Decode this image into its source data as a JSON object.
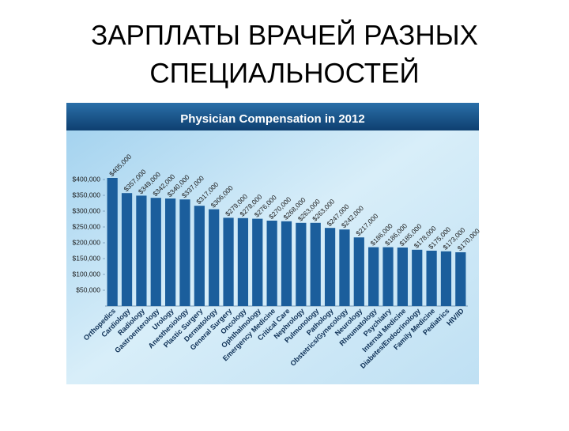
{
  "slide_title": [
    "ЗАРПЛАТЫ ВРАЧЕЙ РАЗНЫХ",
    "СПЕЦИАЛЬНОСТЕЙ"
  ],
  "chart_data": {
    "type": "bar",
    "title": "Physician Compensation in 2012",
    "categories": [
      "Orthopedics",
      "Cardiology",
      "Radiology",
      "Gastroenterology",
      "Urology",
      "Anesthesiology",
      "Plastic Surgery",
      "Dermatology",
      "General Surgery",
      "Oncology",
      "Ophthalmology",
      "Emergency Medicine",
      "Critical Care",
      "Nephrology",
      "Pulmonology",
      "Pathology",
      "Obstetrics/Gynecology",
      "Neurology",
      "Rheumatology",
      "Psychiatry",
      "Internal Medicine",
      "Diabetes/Endocrinology",
      "Family Medicine",
      "Pediatrics",
      "HIV/ID"
    ],
    "values": [
      405000,
      357000,
      349000,
      342000,
      340000,
      337000,
      317000,
      306000,
      279000,
      278000,
      276000,
      270000,
      268000,
      263000,
      263000,
      247000,
      242000,
      217000,
      186000,
      186000,
      185000,
      178000,
      175000,
      173000,
      170000
    ],
    "value_labels": [
      "$405,000",
      "$357,000",
      "$349,000",
      "$342,000",
      "$340,000",
      "$337,000",
      "$317,000",
      "$306,000",
      "$279,000",
      "$278,000",
      "$276,000",
      "$270,000",
      "$268,000",
      "$263,000",
      "$263,000",
      "$247,000",
      "$242,000",
      "$217,000",
      "$186,000",
      "$186,000",
      "$185,000",
      "$178,000",
      "$175,000",
      "$173,000",
      "$170,000"
    ],
    "color": "#1b5e9c",
    "ylim": [
      0,
      430000
    ],
    "yticks": [
      {
        "value": 50000,
        "label": "$50,000"
      },
      {
        "value": 100000,
        "label": "$100,000"
      },
      {
        "value": 150000,
        "label": "$150,000"
      },
      {
        "value": 200000,
        "label": "$200,000"
      },
      {
        "value": 250000,
        "label": "$250,000"
      },
      {
        "value": 300000,
        "label": "$300,000"
      },
      {
        "value": 350000,
        "label": "$350,000"
      },
      {
        "value": 400000,
        "label": "$400,000"
      }
    ],
    "grid": false
  }
}
